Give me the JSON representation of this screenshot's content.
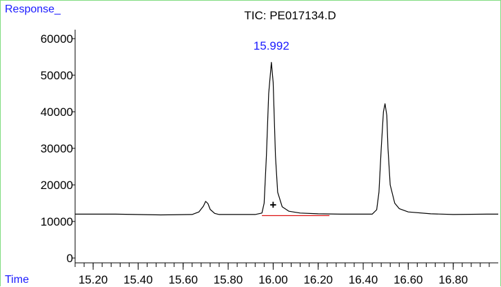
{
  "chart_data": {
    "type": "line",
    "title": "TIC: PE017134.D",
    "ylabel": "Response_",
    "xlabel": "Time",
    "ylim": [
      0,
      65000
    ],
    "xlim": [
      15.12,
      17.0
    ],
    "yticks": [
      0,
      10000,
      20000,
      30000,
      40000,
      50000,
      60000
    ],
    "ytick_labels": [
      "0",
      "10000",
      "20000",
      "30000",
      "40000",
      "50000",
      "60000"
    ],
    "xticks": [
      15.2,
      15.4,
      15.6,
      15.8,
      16.0,
      16.2,
      16.4,
      16.6,
      16.8
    ],
    "xtick_labels": [
      "15.20",
      "15.40",
      "15.60",
      "15.80",
      "16.00",
      "16.20",
      "16.40",
      "16.60",
      "16.80"
    ],
    "grid": false,
    "series": [
      {
        "values": [
          [
            15.12,
            12000
          ],
          [
            15.3,
            12000
          ],
          [
            15.5,
            11800
          ],
          [
            15.64,
            11900
          ],
          [
            15.67,
            12600
          ],
          [
            15.69,
            14200
          ],
          [
            15.7,
            15500
          ],
          [
            15.71,
            14900
          ],
          [
            15.72,
            13300
          ],
          [
            15.74,
            12200
          ],
          [
            15.76,
            11900
          ],
          [
            15.92,
            11900
          ],
          [
            15.95,
            12300
          ],
          [
            15.96,
            15000
          ],
          [
            15.97,
            28000
          ],
          [
            15.98,
            45000
          ],
          [
            15.992,
            53500
          ],
          [
            16.0,
            48000
          ],
          [
            16.01,
            28000
          ],
          [
            16.02,
            18000
          ],
          [
            16.04,
            14000
          ],
          [
            16.07,
            12800
          ],
          [
            16.12,
            12300
          ],
          [
            16.2,
            12100
          ],
          [
            16.3,
            12000
          ],
          [
            16.44,
            12000
          ],
          [
            16.46,
            13200
          ],
          [
            16.47,
            18000
          ],
          [
            16.48,
            30000
          ],
          [
            16.49,
            40000
          ],
          [
            16.497,
            42200
          ],
          [
            16.505,
            39000
          ],
          [
            16.51,
            30000
          ],
          [
            16.52,
            20000
          ],
          [
            16.54,
            15000
          ],
          [
            16.56,
            13500
          ],
          [
            16.6,
            12600
          ],
          [
            16.7,
            12100
          ],
          [
            16.8,
            11900
          ],
          [
            16.95,
            12000
          ],
          [
            17.0,
            12000
          ]
        ],
        "color": "#000000"
      }
    ],
    "baseline": {
      "x": [
        15.95,
        16.25
      ],
      "y": [
        11600,
        11600
      ],
      "color": "#dd1111"
    },
    "annotations": [
      {
        "text": "15.992",
        "x": 15.992,
        "y": 57000,
        "color": "#1a1aff"
      },
      {
        "text": "+",
        "x": 16.0,
        "y": 13500,
        "color": "#000000"
      }
    ]
  }
}
